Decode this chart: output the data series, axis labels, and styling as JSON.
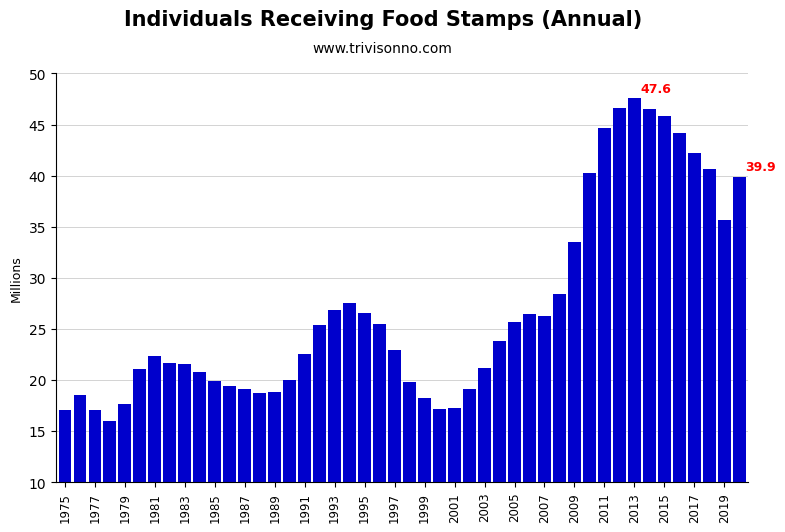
{
  "title": "Individuals Receiving Food Stamps (Annual)",
  "subtitle": "www.trivisonno.com",
  "ylabel": "Millions",
  "bar_color": "#0000CC",
  "background_color": "#FFFFFF",
  "annotation_color": "#FF0000",
  "years": [
    1975,
    1976,
    1977,
    1978,
    1979,
    1980,
    1981,
    1982,
    1983,
    1984,
    1985,
    1986,
    1987,
    1988,
    1989,
    1990,
    1991,
    1992,
    1993,
    1994,
    1995,
    1996,
    1997,
    1998,
    1999,
    2000,
    2001,
    2002,
    2003,
    2004,
    2005,
    2006,
    2007,
    2008,
    2009,
    2010,
    2011,
    2012,
    2013,
    2014,
    2015,
    2016,
    2017,
    2018,
    2019,
    2020
  ],
  "values": [
    17.1,
    18.5,
    17.1,
    16.0,
    17.7,
    21.1,
    22.4,
    21.7,
    21.6,
    20.8,
    19.9,
    19.4,
    19.1,
    18.7,
    18.8,
    20.0,
    22.6,
    25.4,
    26.9,
    27.5,
    26.6,
    25.5,
    22.9,
    19.8,
    18.2,
    17.2,
    17.3,
    19.1,
    21.2,
    23.8,
    25.7,
    26.5,
    26.3,
    28.4,
    33.5,
    40.3,
    44.7,
    46.6,
    47.6,
    46.5,
    45.8,
    44.2,
    42.2,
    40.7,
    35.7,
    39.9
  ],
  "annotate_max_year": 2013,
  "annotate_max_value": 47.6,
  "annotate_last_year": 2020,
  "annotate_last_value": 39.9,
  "ylim_min": 10,
  "ylim_max": 50,
  "yticks": [
    10,
    15,
    20,
    25,
    30,
    35,
    40,
    45,
    50
  ],
  "xtick_years": [
    1975,
    1977,
    1979,
    1981,
    1983,
    1985,
    1987,
    1989,
    1991,
    1993,
    1995,
    1997,
    1999,
    2001,
    2003,
    2005,
    2007,
    2009,
    2011,
    2013,
    2015,
    2017,
    2019
  ],
  "title_fontsize": 15,
  "subtitle_fontsize": 10,
  "bar_width": 0.85
}
